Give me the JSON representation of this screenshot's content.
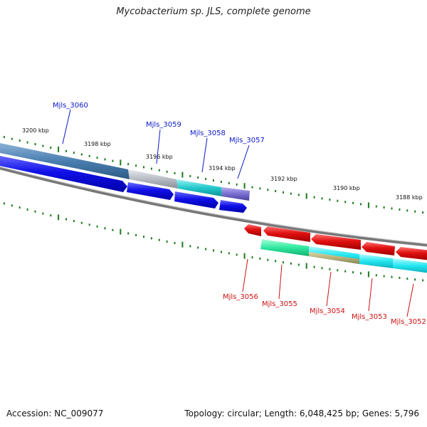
{
  "title": "Mycobacterium sp. JLS, complete genome",
  "footer": {
    "accession": "Accession: NC_009077",
    "summary": "Topology: circular; Length: 6,048,425 bp; Genes: 5,796"
  },
  "scale_labels": [
    "3200 kbp",
    "3198 kbp",
    "3196 kbp",
    "3194 kbp",
    "3192 kbp",
    "3190 kbp",
    "3188 kbp"
  ],
  "forward_genes": [
    "Mjls_3060",
    "Mjls_3059",
    "Mjls_3058",
    "Mjls_3057"
  ],
  "reverse_genes": [
    "Mjls_3056",
    "Mjls_3055",
    "Mjls_3054",
    "Mjls_3053",
    "Mjls_3052"
  ],
  "colors": {
    "forward_label": "#0b18c9",
    "reverse_label": "#cc1111",
    "cds_forward": "#1010e8",
    "cds_reverse": "#e01010",
    "tick": "#1e7a1e",
    "backbone": "#808080",
    "feature_steelblue": "#4a7fb0",
    "feature_gray": "#b8bcc4",
    "feature_cyan": "#22c8cc",
    "feature_slate": "#7a6fd0",
    "feature_green": "#2ee8a0",
    "feature_aqua": "#22e6f0",
    "feature_olive": "#b8b078"
  }
}
